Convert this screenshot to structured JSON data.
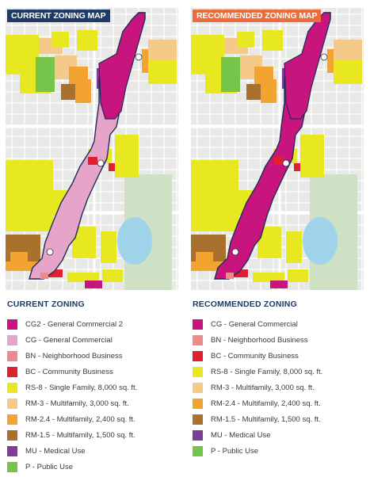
{
  "current": {
    "map_title": "CURRENT ZONING MAP",
    "title_color": "#1f3b66",
    "legend_title": "CURRENT ZONING",
    "legend": [
      {
        "label": "CG2 - General Commercial 2",
        "color": "#c8157d"
      },
      {
        "label": "CG - General Commercial",
        "color": "#e6a4c8"
      },
      {
        "label": "BN - Neighborhood Business",
        "color": "#ee8a88"
      },
      {
        "label": "BC - Community Business",
        "color": "#e0202e"
      },
      {
        "label": "RS-8 - Single Family, 8,000 sq. ft.",
        "color": "#e8e820"
      },
      {
        "label": "RM-3 - Multifamily, 3,000 sq. ft.",
        "color": "#f5c98a"
      },
      {
        "label": "RM-2.4 - Multifamily, 2,400 sq. ft.",
        "color": "#f2a330"
      },
      {
        "label": "RM-1.5 - Multifamily, 1,500 sq. ft.",
        "color": "#a8722e"
      },
      {
        "label": "MU - Medical Use",
        "color": "#7b3f96"
      },
      {
        "label": "P - Public Use",
        "color": "#76c44a"
      }
    ]
  },
  "recommended": {
    "map_title": "RECOMMENDED ZONING MAP",
    "title_color": "#ee6b3b",
    "legend_title": "RECOMMENDED ZONING",
    "legend": [
      {
        "label": "CG - General Commercial",
        "color": "#c8157d"
      },
      {
        "label": "BN - Neighborhood Business",
        "color": "#ee8a88"
      },
      {
        "label": "BC - Community Business",
        "color": "#e0202e"
      },
      {
        "label": "RS-8 - Single Family, 8,000 sq. ft.",
        "color": "#e8e820"
      },
      {
        "label": "RM-3 - Multifamily, 3,000 sq. ft.",
        "color": "#f5c98a"
      },
      {
        "label": "RM-2.4 - Multifamily, 2,400 sq. ft.",
        "color": "#f2a330"
      },
      {
        "label": "RM-1.5 - Multifamily, 1,500 sq. ft.",
        "color": "#a8722e"
      },
      {
        "label": "MU - Medical Use",
        "color": "#7b3f96"
      },
      {
        "label": "P - Public Use",
        "color": "#76c44a"
      }
    ]
  },
  "map_colors": {
    "background": "#e8e8e6",
    "street": "#ffffff",
    "park": "#cfe1c4",
    "lake": "#9fd3ea",
    "corridor_outline": "#1f2d5a",
    "current_corridor": "#e6a4c8",
    "recommended_corridor": "#c8157d"
  }
}
